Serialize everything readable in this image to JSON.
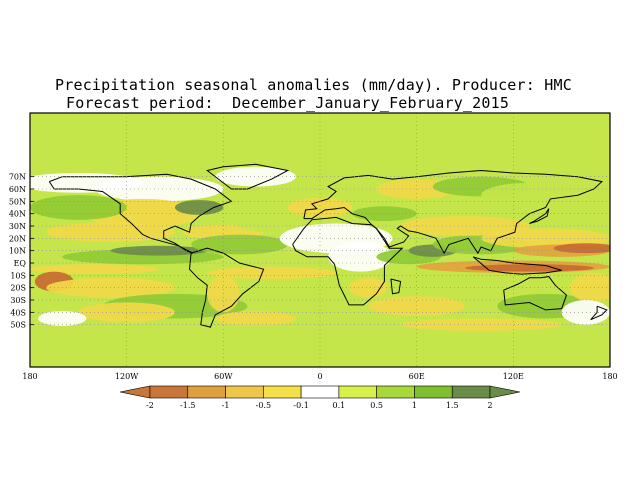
{
  "title_line1": "Precipitation seasonal anomalies (mm/day). Producer: HMC",
  "title_line2": "Forecast period:  December_January_February_2015",
  "lat_labels": [
    "70N",
    "60N",
    "50N",
    "40N",
    "30N",
    "20N",
    "10N",
    "EQ",
    "10S",
    "20S",
    "30S",
    "40S",
    "50S"
  ],
  "lon_labels": [
    "180",
    "120W",
    "60W",
    "0",
    "60E",
    "120E",
    "180"
  ],
  "colorbar": {
    "ticks": [
      "-2",
      "-1.5",
      "-1",
      "-0.5",
      "-0.1",
      "0.1",
      "0.5",
      "1",
      "1.5",
      "2"
    ],
    "colors": [
      "#c8763a",
      "#e0a040",
      "#f0c64a",
      "#f5e04a",
      "#ffffff",
      "#d9ef4a",
      "#a8d83a",
      "#80c030",
      "#6b8c48"
    ]
  },
  "palette": {
    "dry_strong": "#c86a30",
    "dry_moderate": "#e3a33c",
    "dry_light": "#f1d948",
    "neutral": "#ffffff",
    "wet_light": "#c4e64a",
    "wet_moderate": "#8fcb33",
    "wet_strong": "#6b8c48"
  }
}
